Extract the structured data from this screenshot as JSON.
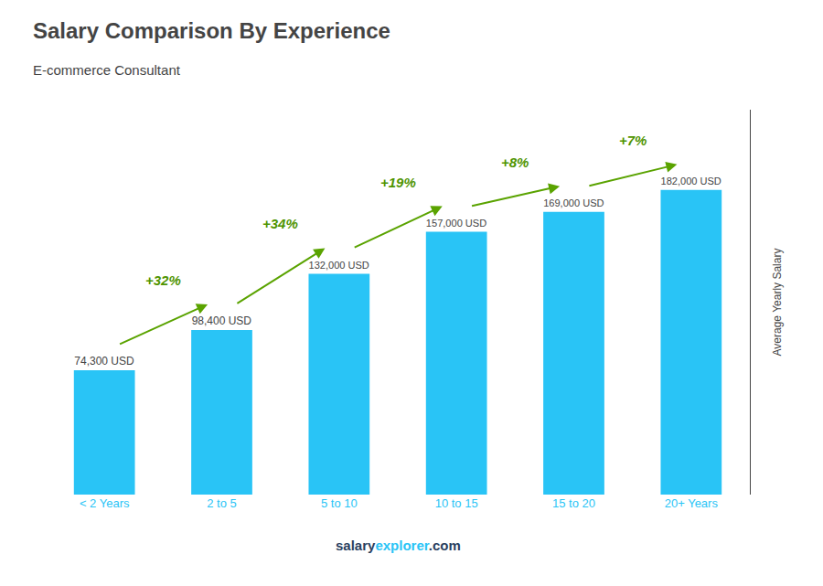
{
  "chart_data": {
    "type": "bar",
    "title": "Salary Comparison By Experience",
    "subtitle": "E-commerce Consultant",
    "ylabel": "Average Yearly Salary",
    "categories": [
      "< 2 Years",
      "2 to 5",
      "5 to 10",
      "10 to 15",
      "15 to 20",
      "20+ Years"
    ],
    "values": [
      74300,
      98400,
      132000,
      157000,
      169000,
      182000
    ],
    "value_labels": [
      "74,300 USD",
      "98,400 USD",
      "132,000 USD",
      "157,000 USD",
      "169,000 USD",
      "182,000 USD"
    ],
    "data_labels": true,
    "annotations": [
      "+32%",
      "+34%",
      "+19%",
      "+8%",
      "+7%"
    ],
    "footer": [
      "salary",
      "explorer",
      ".com"
    ],
    "color": "#29c4f6",
    "ylim": [
      0,
      230000
    ],
    "tick_labels": "x",
    "grid": false
  }
}
